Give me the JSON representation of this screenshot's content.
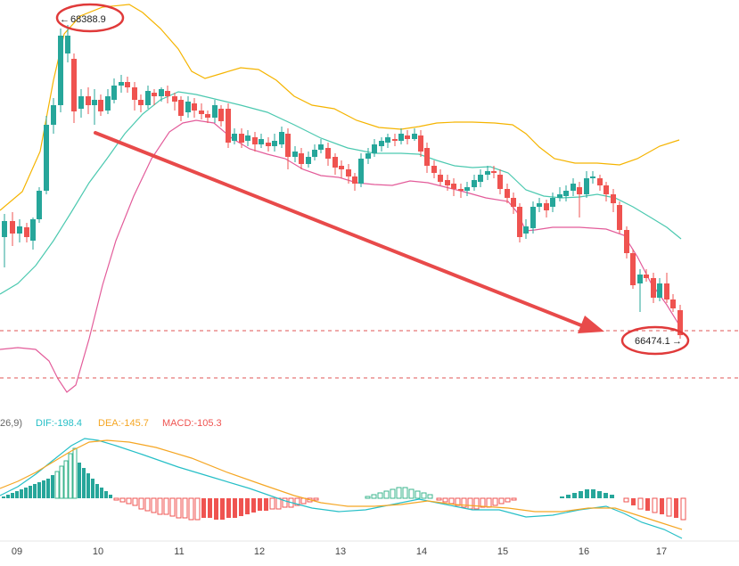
{
  "chart_data": {
    "type": "candlestick",
    "x_ticks": [
      "09",
      "10",
      "11",
      "12",
      "13",
      "14",
      "15",
      "16",
      "17"
    ],
    "y_range_approx": [
      65600,
      68800
    ],
    "annotations": {
      "high_label": "68388.9",
      "high_marker": "←",
      "last_label": "66474.1",
      "last_marker": "→"
    },
    "macd_header": {
      "prefix": "26,9)",
      "dif": "DIF:-198.4",
      "dea": "DEA:-145.7",
      "macd": "MACD:-105.3"
    },
    "colors": {
      "up": "#26a69a",
      "down": "#ef5350",
      "upper_band": "#f5b400",
      "middle_band": "#4cc9b0",
      "lower_band": "#e35c9a",
      "arrow": "#e84a4a",
      "dif": "#26bfc7",
      "dea": "#f5a623",
      "dash_line": "#e05555",
      "macd_up_hollow": "#3bb58e",
      "macd_down_fill": "#ef5350"
    }
  }
}
